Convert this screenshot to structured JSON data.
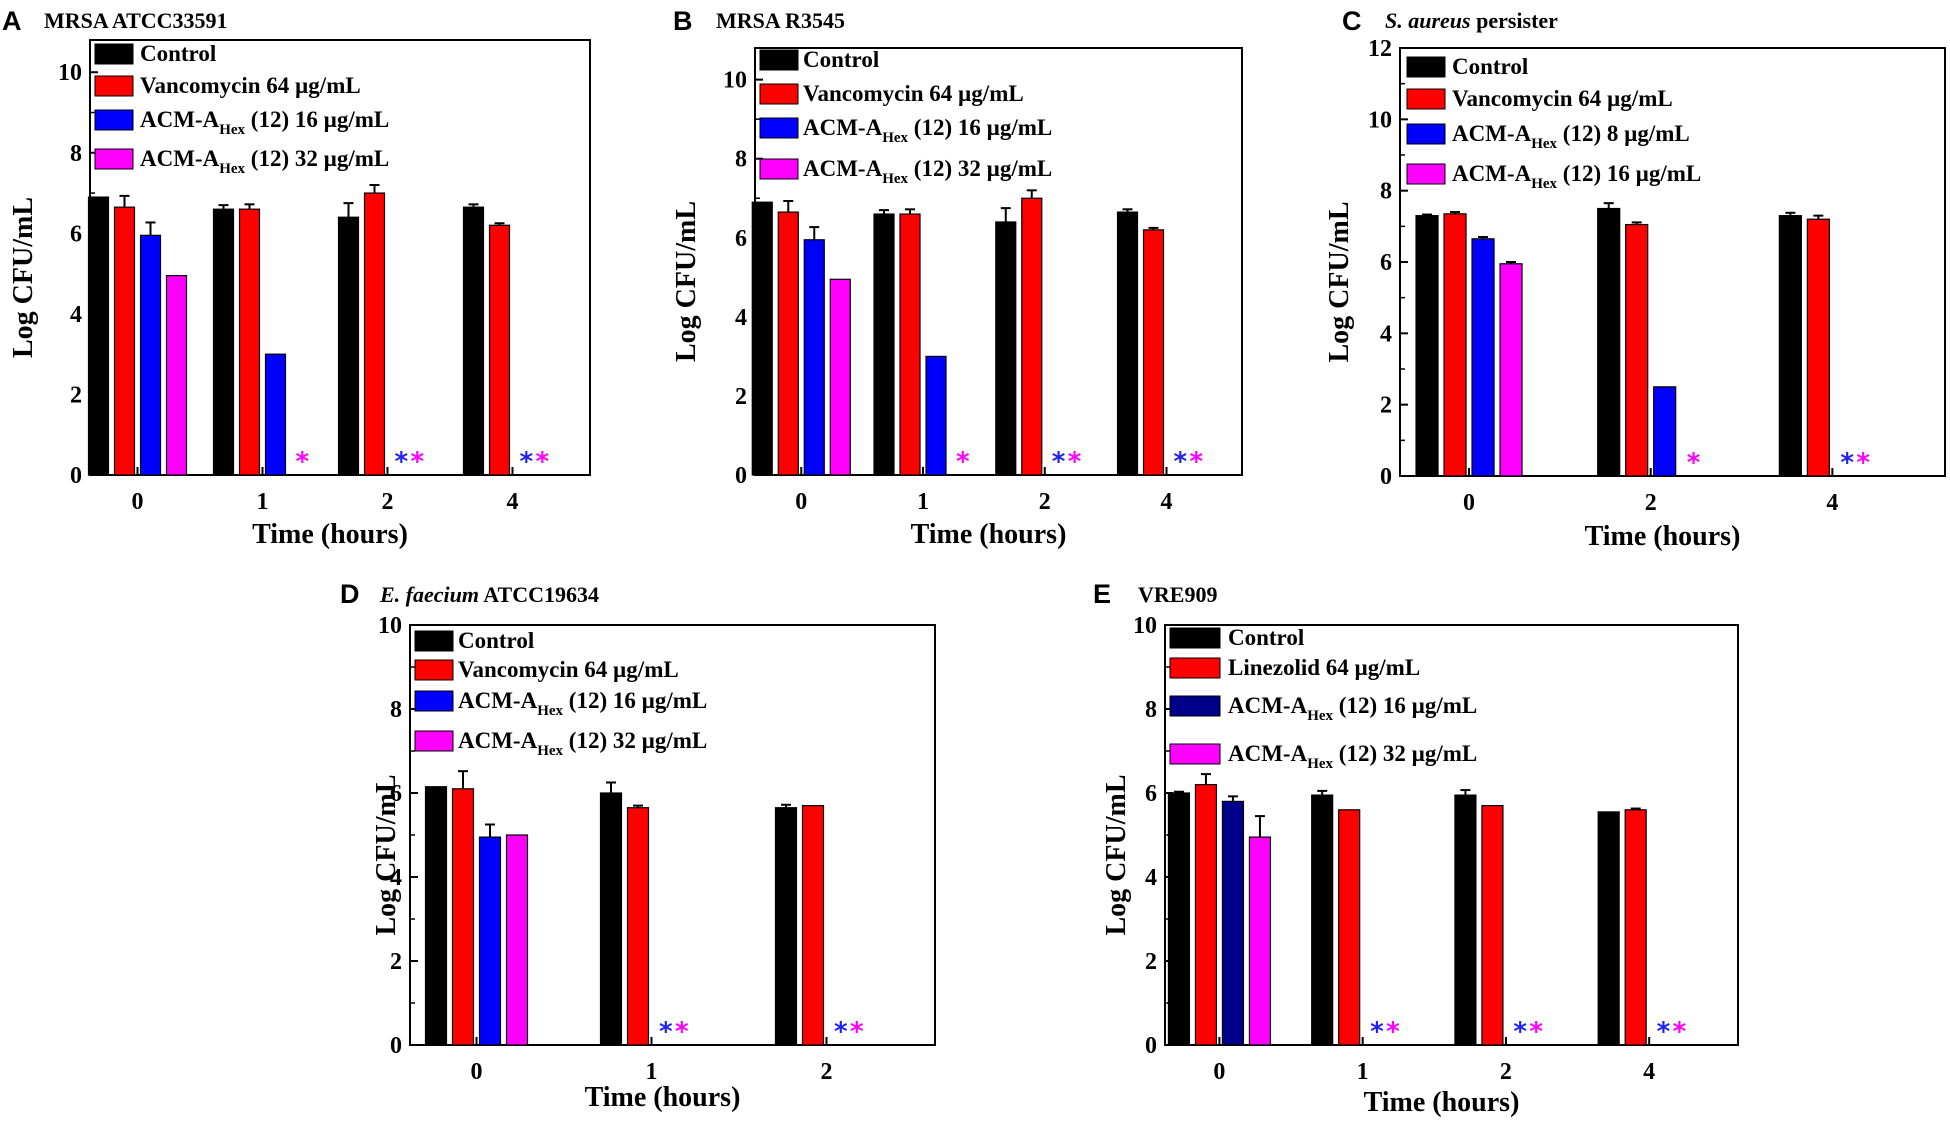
{
  "colors": {
    "control": "#000000",
    "vancomycin": "#ff0000",
    "acm_low": "#0000ff",
    "acm_high": "#ff00ff",
    "acm_low_navy": "#00008b",
    "star_blue": "#2222ee",
    "star_magenta": "#ff00ff"
  },
  "chart_data": [
    {
      "type": "bar",
      "panel": "A",
      "title": "MRSA ATCC33591",
      "xlabel": "Time  (hours)",
      "ylabel": "Log CFU/mL",
      "ylim": [
        0,
        10.8
      ],
      "yticks": [
        "0",
        "2",
        "4",
        "6",
        "8",
        "10"
      ],
      "categories": [
        "0",
        "1",
        "2",
        "4"
      ],
      "series": [
        {
          "name": "Control",
          "color_key": "control",
          "values": [
            6.9,
            6.6,
            6.4,
            6.65
          ],
          "errors": [
            0,
            0.1,
            0.35,
            0.07
          ]
        },
        {
          "name": "Vancomycin 64 µg/mL",
          "color_key": "vancomycin",
          "values": [
            6.65,
            6.6,
            7.0,
            6.2
          ],
          "errors": [
            0.28,
            0.12,
            0.2,
            0.05
          ]
        },
        {
          "name": "ACM-A",
          "sub": "Hex",
          "suffix": " (12) 16 µg/mL",
          "color_key": "acm_low",
          "values": [
            5.95,
            3.0,
            0,
            0
          ],
          "errors": [
            0.32,
            0,
            0,
            0
          ]
        },
        {
          "name": "ACM-A",
          "sub": "Hex",
          "suffix": " (12) 32 µg/mL",
          "color_key": "acm_high",
          "values": [
            4.95,
            0,
            0,
            0
          ],
          "errors": [
            0,
            0,
            0,
            0
          ]
        }
      ],
      "stars": [
        [],
        [
          "magenta"
        ],
        [
          "blue",
          "magenta"
        ],
        [
          "blue",
          "magenta"
        ]
      ]
    },
    {
      "type": "bar",
      "panel": "B",
      "title": "MRSA R3545",
      "xlabel": "Time  (hours)",
      "ylabel": "Log CFU/mL",
      "ylim": [
        0,
        10.8
      ],
      "yticks": [
        "0",
        "2",
        "4",
        "6",
        "8",
        "10"
      ],
      "categories": [
        "0",
        "1",
        "2",
        "4"
      ],
      "series": [
        {
          "name": "Control",
          "color_key": "control",
          "values": [
            6.9,
            6.6,
            6.4,
            6.65
          ],
          "errors": [
            0,
            0.1,
            0.35,
            0.07
          ]
        },
        {
          "name": "Vancomycin 64 µg/mL",
          "color_key": "vancomycin",
          "values": [
            6.65,
            6.6,
            7.0,
            6.2
          ],
          "errors": [
            0.28,
            0.12,
            0.2,
            0.05
          ]
        },
        {
          "name": "ACM-A",
          "sub": "Hex",
          "suffix": " (12) 16 µg/mL",
          "color_key": "acm_low",
          "values": [
            5.95,
            3.0,
            0,
            0
          ],
          "errors": [
            0.32,
            0,
            0,
            0
          ]
        },
        {
          "name": "ACM-A",
          "sub": "Hex",
          "suffix": " (12) 32 µg/mL",
          "color_key": "acm_high",
          "values": [
            4.95,
            0,
            0,
            0
          ],
          "errors": [
            0,
            0,
            0,
            0
          ]
        }
      ],
      "stars": [
        [],
        [
          "magenta"
        ],
        [
          "blue",
          "magenta"
        ],
        [
          "blue",
          "magenta"
        ]
      ]
    },
    {
      "type": "bar",
      "panel": "C",
      "title_italic": "S. aureus",
      "title": " persister",
      "xlabel": "Time (hours)",
      "ylabel": "Log CFU/mL",
      "ylim": [
        0,
        12
      ],
      "yticks": [
        "0",
        "2",
        "4",
        "6",
        "8",
        "10",
        "12"
      ],
      "categories": [
        "0",
        "2",
        "4"
      ],
      "series": [
        {
          "name": "Control",
          "color_key": "control",
          "values": [
            7.3,
            7.5,
            7.3
          ],
          "errors": [
            0.03,
            0.15,
            0.08
          ]
        },
        {
          "name": "Vancomycin 64 µg/mL",
          "color_key": "vancomycin",
          "values": [
            7.35,
            7.05,
            7.2
          ],
          "errors": [
            0.05,
            0.06,
            0.1
          ]
        },
        {
          "name": "ACM-A",
          "sub": "Hex",
          "suffix": " (12) 8 µg/mL",
          "color_key": "acm_low",
          "values": [
            6.65,
            2.5,
            0
          ],
          "errors": [
            0.05,
            0,
            0
          ]
        },
        {
          "name": "ACM-A",
          "sub": "Hex",
          "suffix": " (12) 16 µg/mL",
          "color_key": "acm_high",
          "values": [
            5.95,
            0,
            0
          ],
          "errors": [
            0.05,
            0,
            0
          ]
        }
      ],
      "stars": [
        [],
        [
          "magenta"
        ],
        [
          "blue",
          "magenta"
        ]
      ]
    },
    {
      "type": "bar",
      "panel": "D",
      "title_italic": "E. faecium",
      "title": " ATCC19634",
      "xlabel": "Time (hours)",
      "ylabel": "Log CFU/mL",
      "ylim": [
        0,
        10
      ],
      "yticks": [
        "0",
        "2",
        "4",
        "6",
        "8",
        "10"
      ],
      "categories": [
        "0",
        "1",
        "2"
      ],
      "series": [
        {
          "name": "Control",
          "color_key": "control",
          "values": [
            6.15,
            6.0,
            5.65
          ],
          "errors": [
            0,
            0.25,
            0.07
          ]
        },
        {
          "name": "Vancomycin 64 µg/mL",
          "color_key": "vancomycin",
          "values": [
            6.1,
            5.65,
            5.7
          ],
          "errors": [
            0.42,
            0.05,
            0
          ]
        },
        {
          "name": "ACM-A",
          "sub": "Hex",
          "suffix": " (12) 16 µg/mL",
          "color_key": "acm_low",
          "values": [
            4.95,
            0,
            0
          ],
          "errors": [
            0.3,
            0,
            0
          ]
        },
        {
          "name": "ACM-A",
          "sub": "Hex",
          "suffix": " (12) 32 µg/mL",
          "color_key": "acm_high",
          "values": [
            5.0,
            0,
            0
          ],
          "errors": [
            0,
            0,
            0
          ]
        }
      ],
      "stars": [
        [],
        [
          "blue",
          "magenta"
        ],
        [
          "blue",
          "magenta"
        ]
      ]
    },
    {
      "type": "bar",
      "panel": "E",
      "title": "VRE909",
      "xlabel": "Time (hours)",
      "ylabel": "Log CFU/mL",
      "ylim": [
        0,
        10
      ],
      "yticks": [
        "0",
        "2",
        "4",
        "6",
        "8",
        "10"
      ],
      "categories": [
        "0",
        "1",
        "2",
        "4"
      ],
      "series": [
        {
          "name": "Control",
          "color_key": "control",
          "values": [
            6.0,
            5.95,
            5.95,
            5.55
          ],
          "errors": [
            0.03,
            0.1,
            0.12,
            0
          ]
        },
        {
          "name": "Linezolid 64 µg/mL",
          "color_key": "vancomycin",
          "values": [
            6.2,
            5.6,
            5.7,
            5.6
          ],
          "errors": [
            0.25,
            0,
            0,
            0.03
          ]
        },
        {
          "name": "ACM-A",
          "sub": "Hex",
          "suffix": " (12) 16 µg/mL",
          "color_key": "acm_low_navy",
          "values": [
            5.8,
            0,
            0,
            0
          ],
          "errors": [
            0.12,
            0,
            0,
            0
          ]
        },
        {
          "name": "ACM-A",
          "sub": "Hex",
          "suffix": " (12) 32 µg/mL",
          "color_key": "acm_high",
          "values": [
            4.95,
            0,
            0,
            0
          ],
          "errors": [
            0.5,
            0,
            0,
            0
          ]
        }
      ],
      "stars": [
        [],
        [
          "blue",
          "magenta"
        ],
        [
          "blue",
          "magenta"
        ],
        [
          "blue",
          "magenta"
        ]
      ]
    }
  ]
}
